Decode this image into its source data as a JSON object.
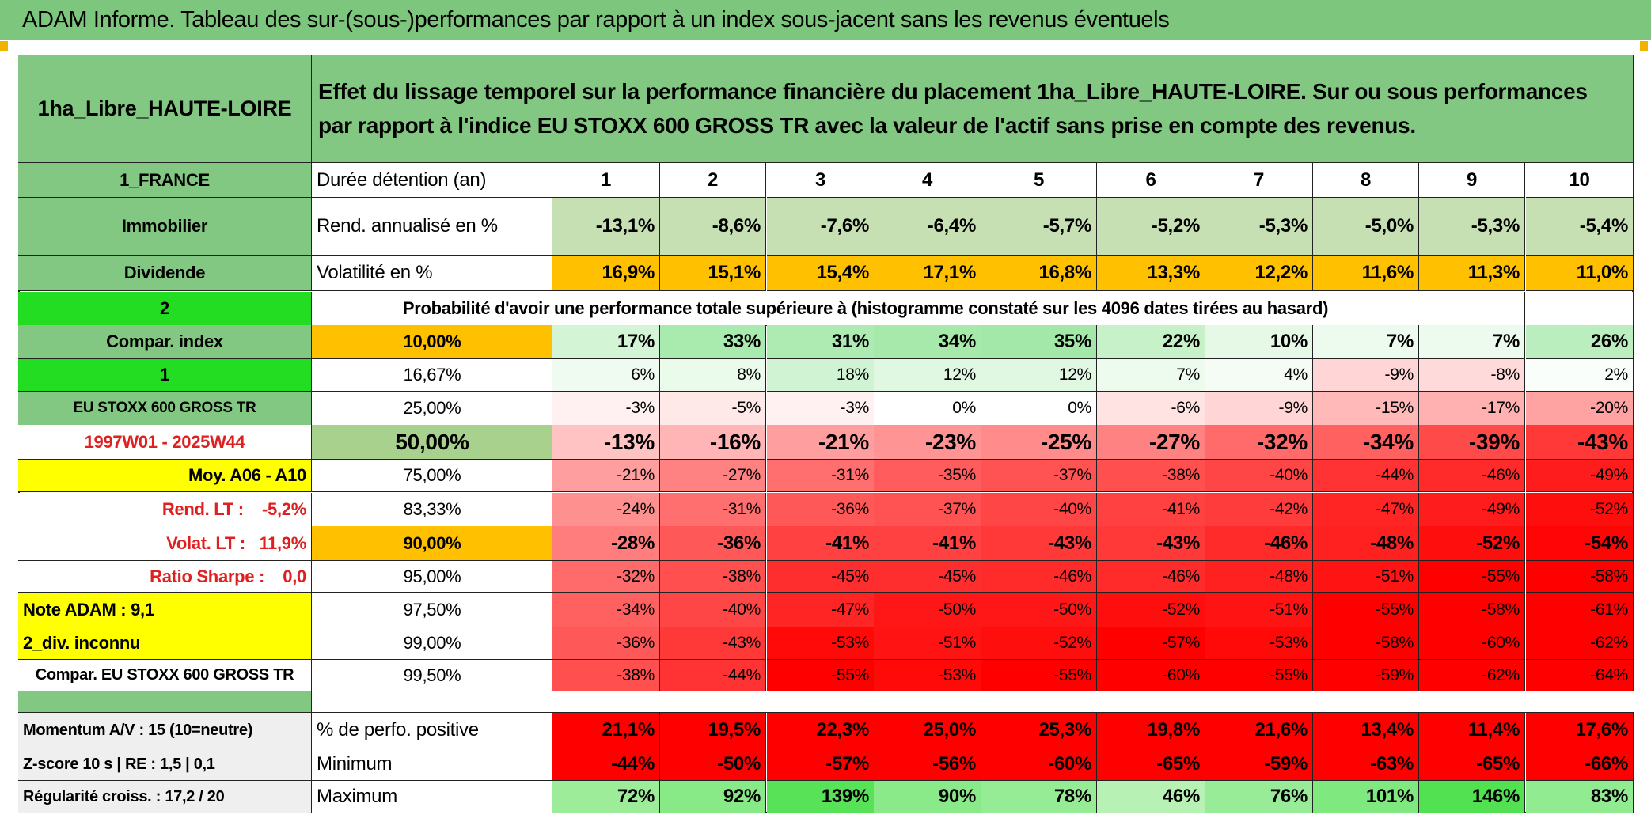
{
  "header": {
    "title": "ADAM Informe. Tableau des sur-(sous-)performances par rapport à un index sous-jacent sans les revenus éventuels"
  },
  "table": {
    "name": "1ha_Libre_HAUTE-LOIRE",
    "description": "Effet du lissage temporel sur la performance financière du placement 1ha_Libre_HAUTE-LOIRE. Sur ou sous performances par rapport à l'indice EU STOXX 600 GROSS TR avec la valeur de l'actif sans prise en compte des revenus.",
    "rows": [
      [
        "1_FRANCE",
        "Durée détention (an)",
        "1",
        "2",
        "3",
        "4",
        "5",
        "6",
        "7",
        "8",
        "9",
        "10"
      ],
      [
        "Immobilier",
        "Rend. annualisé en %",
        "-13,1%",
        "-8,6%",
        "-7,6%",
        "-6,4%",
        "-5,7%",
        "-5,2%",
        "-5,3%",
        "-5,0%",
        "-5,3%",
        "-5,4%"
      ],
      [
        "Dividende",
        "Volatilité en %",
        "16,9%",
        "15,1%",
        "15,4%",
        "17,1%",
        "16,8%",
        "13,3%",
        "12,2%",
        "11,6%",
        "11,3%",
        "11,0%"
      ],
      [
        "2",
        "Probabilité d'avoir une performance totale supérieure à (histogramme constaté sur les 4096 dates tirées au hasard)"
      ],
      [
        "Compar. index",
        "10,00%",
        "17%",
        "33%",
        "31%",
        "34%",
        "35%",
        "22%",
        "10%",
        "7%",
        "7%",
        "26%"
      ],
      [
        "1",
        "16,67%",
        "6%",
        "8%",
        "18%",
        "12%",
        "12%",
        "7%",
        "4%",
        "-9%",
        "-8%",
        "2%"
      ],
      [
        "EU STOXX 600 GROSS TR",
        "25,00%",
        "-3%",
        "-5%",
        "-3%",
        "0%",
        "0%",
        "-6%",
        "-9%",
        "-15%",
        "-17%",
        "-20%"
      ],
      [
        "1997W01 - 2025W44",
        "50,00%",
        "-13%",
        "-16%",
        "-21%",
        "-23%",
        "-25%",
        "-27%",
        "-32%",
        "-34%",
        "-39%",
        "-43%"
      ],
      [
        "Moy. A06 - A10",
        "75,00%",
        "-21%",
        "-27%",
        "-31%",
        "-35%",
        "-37%",
        "-38%",
        "-40%",
        "-44%",
        "-46%",
        "-49%"
      ],
      [
        "Rend. LT :    -5,2%",
        "83,33%",
        "-24%",
        "-31%",
        "-36%",
        "-37%",
        "-40%",
        "-41%",
        "-42%",
        "-47%",
        "-49%",
        "-52%"
      ],
      [
        "Volat. LT :   11,9%",
        "90,00%",
        "-28%",
        "-36%",
        "-41%",
        "-41%",
        "-43%",
        "-43%",
        "-46%",
        "-48%",
        "-52%",
        "-54%"
      ],
      [
        "Ratio Sharpe :    0,0",
        "95,00%",
        "-32%",
        "-38%",
        "-45%",
        "-45%",
        "-46%",
        "-46%",
        "-48%",
        "-51%",
        "-55%",
        "-58%"
      ],
      [
        "Note ADAM : 9,1",
        "97,50%",
        "-34%",
        "-40%",
        "-47%",
        "-50%",
        "-50%",
        "-52%",
        "-51%",
        "-55%",
        "-58%",
        "-61%"
      ],
      [
        "2_div. inconnu",
        "99,00%",
        "-36%",
        "-43%",
        "-53%",
        "-51%",
        "-52%",
        "-57%",
        "-53%",
        "-58%",
        "-60%",
        "-62%"
      ],
      [
        "Compar. EU STOXX 600 GROSS TR",
        "99,50%",
        "-38%",
        "-44%",
        "-55%",
        "-53%",
        "-55%",
        "-60%",
        "-55%",
        "-59%",
        "-62%",
        "-64%"
      ],
      [
        "Momentum A/V : 15 (10=neutre)",
        "% de perfo. positive",
        "21,1%",
        "19,5%",
        "22,3%",
        "25,0%",
        "25,3%",
        "19,8%",
        "21,6%",
        "13,4%",
        "11,4%",
        "17,6%"
      ],
      [
        "Z-score 10 s | RE : 1,5 | 0,1",
        "Minimum",
        "-44%",
        "-50%",
        "-57%",
        "-56%",
        "-60%",
        "-65%",
        "-59%",
        "-63%",
        "-65%",
        "-66%"
      ],
      [
        "Régularité croiss. : 17,2 / 20",
        "Maximum",
        "72%",
        "92%",
        "139%",
        "90%",
        "78%",
        "46%",
        "76%",
        "101%",
        "146%",
        "83%"
      ]
    ]
  }
}
